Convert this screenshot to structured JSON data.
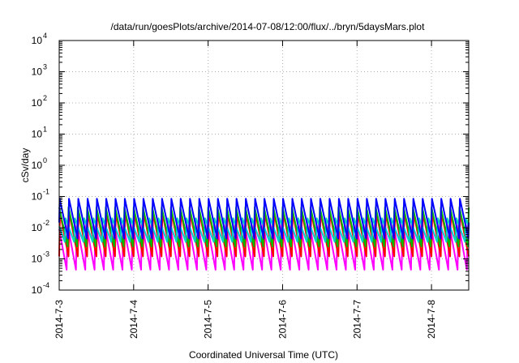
{
  "chart_data": {
    "type": "line",
    "title": "/data/run/goesPlots/archive/2014-07-08/12:00/flux/../bryn/5daysMars.plot",
    "xlabel": "Coordinated Universal Time (UTC)",
    "ylabel": "cSv/day",
    "y_scale": "log",
    "ylim": [
      0.0001,
      10000
    ],
    "xlim": [
      "2014-07-03T00:00",
      "2014-07-08T12:00"
    ],
    "grid": true,
    "legend": "none",
    "x_ticks": [
      "2014-7-3",
      "2014-7-4",
      "2014-7-5",
      "2014-7-6",
      "2014-7-7",
      "2014-7-8"
    ],
    "y_ticks": [
      {
        "base": "10",
        "exp": "-4",
        "value": 0.0001
      },
      {
        "base": "10",
        "exp": "-3",
        "value": 0.001
      },
      {
        "base": "10",
        "exp": "-2",
        "value": 0.01
      },
      {
        "base": "10",
        "exp": "-1",
        "value": 0.1
      },
      {
        "base": "10",
        "exp": "0",
        "value": 1
      },
      {
        "base": "10",
        "exp": "1",
        "value": 10
      },
      {
        "base": "10",
        "exp": "2",
        "value": 100
      },
      {
        "base": "10",
        "exp": "3",
        "value": 1000
      },
      {
        "base": "10",
        "exp": "4",
        "value": 10000
      }
    ],
    "cycle_hours": 3,
    "series": [
      {
        "color": "#ff00ff",
        "peak": 0.014,
        "trough": 0.00045,
        "offset_hours": 0.6
      },
      {
        "color": "#ff0000",
        "peak": 0.03,
        "trough": 0.0012,
        "offset_hours": 0.0
      },
      {
        "color": "#00bb00",
        "peak": 0.045,
        "trough": 0.0025,
        "offset_hours": 0.25
      },
      {
        "color": "#00cccc",
        "peak": 0.02,
        "trough": 0.0035,
        "offset_hours": 1.2
      },
      {
        "color": "#0000ff",
        "peak": 0.085,
        "trough": 0.0045,
        "offset_hours": 0.1
      }
    ]
  }
}
